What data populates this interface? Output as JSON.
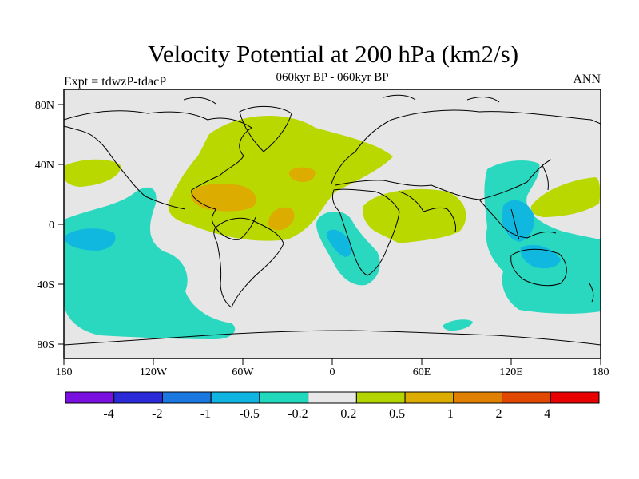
{
  "title": "Velocity Potential at 200 hPa (km2/s)",
  "subtitle": "060kyr BP - 060kyr BP",
  "left_label": "Expt = tdwzP-tdacP",
  "right_label": "ANN",
  "axes": {
    "y_ticks": [
      "80N",
      "40N",
      "0",
      "40S",
      "80S"
    ],
    "x_ticks": [
      "180",
      "120W",
      "60W",
      "0",
      "60E",
      "120E",
      "180"
    ]
  },
  "colorbar": {
    "colors": [
      "#7a10e0",
      "#2a2ad8",
      "#1a78e0",
      "#10b4e0",
      "#20d8bc",
      "#e8e8e8",
      "#b4d400",
      "#dcac00",
      "#e08000",
      "#e04800",
      "#e80000"
    ],
    "labels": [
      "-4",
      "-2",
      "-1",
      "-0.5",
      "-0.2",
      "0.2",
      "0.5",
      "1",
      "2",
      "4"
    ]
  },
  "map_colors": {
    "background": "#e6e6e6",
    "positive_weak": "#b8d800",
    "positive_mid": "#dcac00",
    "negative_weak": "#2ad8c0",
    "negative_mid": "#10b8e0",
    "coast": "#000000"
  }
}
